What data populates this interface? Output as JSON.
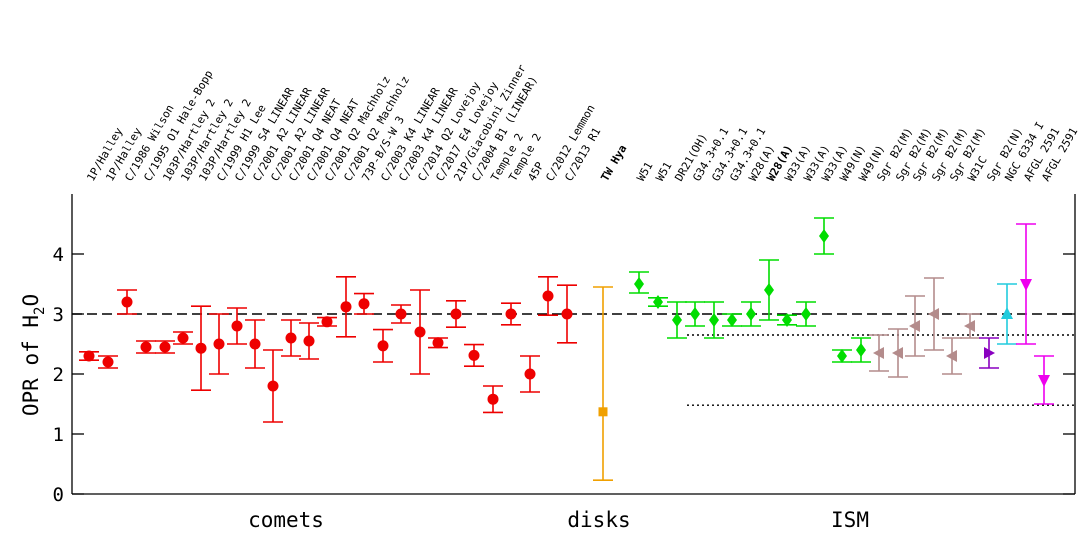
{
  "chart_data": {
    "type": "scatter",
    "ylabel": "OPR of H",
    "ylabel_subscript": "2",
    "ylabel_suffix": "O",
    "ylim": [
      0,
      5
    ],
    "yticks": [
      0,
      1,
      2,
      3,
      4
    ],
    "grid": false,
    "groups": [
      "comets",
      "disks",
      "ISM"
    ],
    "reference_lines": [
      {
        "y": 3.0,
        "style": "dashed",
        "from": 0,
        "to": 53
      },
      {
        "y": 2.65,
        "style": "dotted",
        "from": 32,
        "to": 53
      },
      {
        "y": 1.48,
        "style": "dotted",
        "from": 32,
        "to": 53
      }
    ],
    "colors": {
      "comet": "#ee0000",
      "disk": "#f0a000",
      "ism_green": "#00dd00",
      "ism_brown": "#b48c8c",
      "ism_purple": "#8a00c0",
      "ism_cyan": "#22ccdd",
      "ism_magenta": "#ee00ee"
    },
    "points": [
      {
        "label": "1P/Halley",
        "y": 2.3,
        "lo": 2.23,
        "hi": 2.37,
        "color": "comet",
        "marker": "circle"
      },
      {
        "label": "1P/Halley",
        "y": 2.2,
        "lo": 2.1,
        "hi": 2.3,
        "color": "comet",
        "marker": "circle"
      },
      {
        "label": "C/1986 Wilson",
        "y": 3.2,
        "lo": 3.0,
        "hi": 3.4,
        "color": "comet",
        "marker": "circle"
      },
      {
        "label": "C/1995 O1 Hale-Bopp",
        "y": 2.45,
        "lo": 2.35,
        "hi": 2.55,
        "color": "comet",
        "marker": "circle"
      },
      {
        "label": "103P/Hartley 2",
        "y": 2.45,
        "lo": 2.35,
        "hi": 2.55,
        "color": "comet",
        "marker": "circle"
      },
      {
        "label": "103P/Hartley 2",
        "y": 2.6,
        "lo": 2.5,
        "hi": 2.7,
        "color": "comet",
        "marker": "circle"
      },
      {
        "label": "103P/Hartley 2",
        "y": 2.43,
        "lo": 1.73,
        "hi": 3.13,
        "color": "comet",
        "marker": "circle"
      },
      {
        "label": "C/1999 H1 Lee",
        "y": 2.5,
        "lo": 2.0,
        "hi": 3.0,
        "color": "comet",
        "marker": "circle"
      },
      {
        "label": "C/1999 S4 LINEAR",
        "y": 2.8,
        "lo": 2.5,
        "hi": 3.1,
        "color": "comet",
        "marker": "circle"
      },
      {
        "label": "C/2001 A2 LINEAR",
        "y": 2.5,
        "lo": 2.1,
        "hi": 2.9,
        "color": "comet",
        "marker": "circle"
      },
      {
        "label": "C/2001 A2 LINEAR",
        "y": 1.8,
        "lo": 1.2,
        "hi": 2.4,
        "color": "comet",
        "marker": "circle"
      },
      {
        "label": "C/2001 Q4 NEAT",
        "y": 2.6,
        "lo": 2.3,
        "hi": 2.9,
        "color": "comet",
        "marker": "circle"
      },
      {
        "label": "C/2001 Q4 NEAT",
        "y": 2.55,
        "lo": 2.25,
        "hi": 2.85,
        "color": "comet",
        "marker": "circle"
      },
      {
        "label": "C/2001 Q2 Machholz",
        "y": 2.87,
        "lo": 2.8,
        "hi": 2.94,
        "color": "comet",
        "marker": "circle"
      },
      {
        "label": "C/2001 Q2 Machholz",
        "y": 3.12,
        "lo": 2.62,
        "hi": 3.62,
        "color": "comet",
        "marker": "circle"
      },
      {
        "label": "73P-B/S-W 3",
        "y": 3.17,
        "lo": 3.0,
        "hi": 3.34,
        "color": "comet",
        "marker": "circle"
      },
      {
        "label": "C/2003 K4 LINEAR",
        "y": 2.47,
        "lo": 2.2,
        "hi": 2.74,
        "color": "comet",
        "marker": "circle"
      },
      {
        "label": "C/2003 K4 LINEAR",
        "y": 3.0,
        "lo": 2.85,
        "hi": 3.15,
        "color": "comet",
        "marker": "circle"
      },
      {
        "label": "C/2014 Q2 Lovejoy",
        "y": 2.7,
        "lo": 2.0,
        "hi": 3.4,
        "color": "comet",
        "marker": "circle"
      },
      {
        "label": "C/2017 E4 Lovejoy",
        "y": 2.52,
        "lo": 2.44,
        "hi": 2.6,
        "color": "comet",
        "marker": "circle"
      },
      {
        "label": "21P/Giacobini Zinner",
        "y": 3.0,
        "lo": 2.78,
        "hi": 3.22,
        "color": "comet",
        "marker": "circle"
      },
      {
        "label": "C/2004 B1 (LINEAR)",
        "y": 2.31,
        "lo": 2.13,
        "hi": 2.49,
        "color": "comet",
        "marker": "circle"
      },
      {
        "label": "Temple 2",
        "y": 1.58,
        "lo": 1.36,
        "hi": 1.8,
        "color": "comet",
        "marker": "circle"
      },
      {
        "label": "Temple 2",
        "y": 3.0,
        "lo": 2.82,
        "hi": 3.18,
        "color": "comet",
        "marker": "circle"
      },
      {
        "label": "45P",
        "y": 2.0,
        "lo": 1.7,
        "hi": 2.3,
        "color": "comet",
        "marker": "circle"
      },
      {
        "label": "C/2012 Lemmon",
        "y": 3.3,
        "lo": 2.98,
        "hi": 3.62,
        "color": "comet",
        "marker": "circle"
      },
      {
        "label": "C/2013 R1",
        "y": 3.0,
        "lo": 2.52,
        "hi": 3.48,
        "color": "comet",
        "marker": "circle"
      },
      {
        "label": "TW Hya",
        "y": 1.37,
        "lo": 0.23,
        "hi": 3.45,
        "color": "disk",
        "marker": "square",
        "bold": true
      },
      {
        "label": "W51",
        "y": 3.5,
        "lo": 3.35,
        "hi": 3.7,
        "color": "ism_green",
        "marker": "diamond"
      },
      {
        "label": "W51",
        "y": 3.2,
        "lo": 3.13,
        "hi": 3.27,
        "color": "ism_green",
        "marker": "diamond"
      },
      {
        "label": "DR21(OH)",
        "y": 2.9,
        "lo": 2.6,
        "hi": 3.2,
        "color": "ism_green",
        "marker": "diamond"
      },
      {
        "label": "G34.3+0.1",
        "y": 3.0,
        "lo": 2.8,
        "hi": 3.2,
        "color": "ism_green",
        "marker": "diamond"
      },
      {
        "label": "G34.3+0.1",
        "y": 2.9,
        "lo": 2.6,
        "hi": 3.2,
        "color": "ism_green",
        "marker": "diamond"
      },
      {
        "label": "G34.3+0.1",
        "y": 2.9,
        "lo": 2.8,
        "hi": 3.0,
        "color": "ism_green",
        "marker": "diamond"
      },
      {
        "label": "W28(A)",
        "y": 3.0,
        "lo": 2.8,
        "hi": 3.2,
        "color": "ism_green",
        "marker": "diamond"
      },
      {
        "label": "W28(A)",
        "y": 3.4,
        "lo": 2.9,
        "hi": 3.9,
        "color": "ism_green",
        "marker": "diamond",
        "bold": true
      },
      {
        "label": "W33(A)",
        "y": 2.9,
        "lo": 2.82,
        "hi": 2.98,
        "color": "ism_green",
        "marker": "diamond"
      },
      {
        "label": "W33(A)",
        "y": 3.0,
        "lo": 2.8,
        "hi": 3.2,
        "color": "ism_green",
        "marker": "diamond"
      },
      {
        "label": "W33(A)",
        "y": 4.3,
        "lo": 4.0,
        "hi": 4.6,
        "color": "ism_green",
        "marker": "diamond"
      },
      {
        "label": "W49(N)",
        "y": 2.3,
        "lo": 2.2,
        "hi": 2.4,
        "color": "ism_green",
        "marker": "diamond"
      },
      {
        "label": "W49(N)",
        "y": 2.4,
        "lo": 2.2,
        "hi": 2.6,
        "color": "ism_green",
        "marker": "diamond"
      },
      {
        "label": "Sgr B2(M)",
        "y": 2.35,
        "lo": 2.05,
        "hi": 2.65,
        "color": "ism_brown",
        "marker": "triangle-left"
      },
      {
        "label": "Sgr B2(M)",
        "y": 2.35,
        "lo": 1.95,
        "hi": 2.75,
        "color": "ism_brown",
        "marker": "triangle-left"
      },
      {
        "label": "Sgr B2(M)",
        "y": 2.8,
        "lo": 2.3,
        "hi": 3.3,
        "color": "ism_brown",
        "marker": "triangle-left"
      },
      {
        "label": "Sgr B2(M)",
        "y": 3.0,
        "lo": 2.4,
        "hi": 3.6,
        "color": "ism_brown",
        "marker": "triangle-left"
      },
      {
        "label": "Sgr B2(M)",
        "y": 2.3,
        "lo": 2.0,
        "hi": 2.6,
        "color": "ism_brown",
        "marker": "triangle-left"
      },
      {
        "label": "W31C",
        "y": 2.8,
        "lo": 2.6,
        "hi": 3.0,
        "color": "ism_brown",
        "marker": "triangle-left"
      },
      {
        "label": "Sgr B2(N)",
        "y": 2.35,
        "lo": 2.1,
        "hi": 2.6,
        "color": "ism_purple",
        "marker": "triangle-right"
      },
      {
        "label": "NGC 6334 I",
        "y": 3.0,
        "lo": 2.5,
        "hi": 3.5,
        "color": "ism_cyan",
        "marker": "triangle-up"
      },
      {
        "label": "AFGL 2591",
        "y": 3.5,
        "lo": 2.5,
        "hi": 4.5,
        "color": "ism_magenta",
        "marker": "triangle-down"
      },
      {
        "label": "AFGL 2591",
        "y": 1.9,
        "lo": 1.5,
        "hi": 2.3,
        "color": "ism_magenta",
        "marker": "triangle-down"
      }
    ]
  }
}
